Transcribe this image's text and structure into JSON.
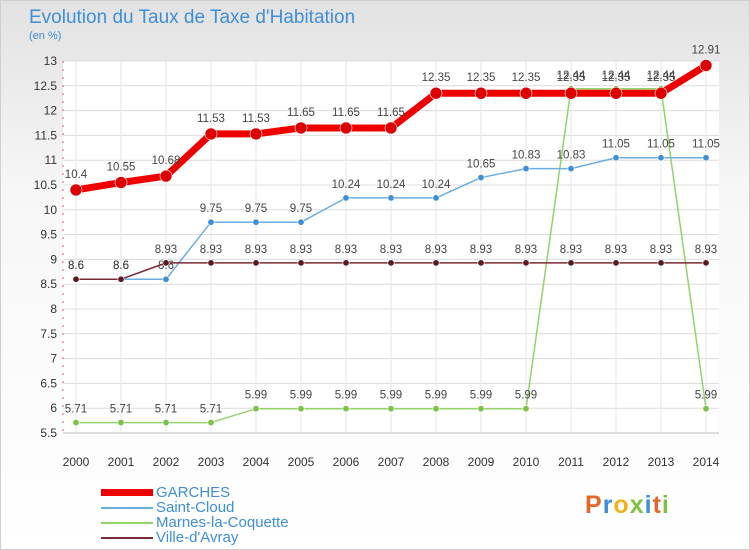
{
  "header": {
    "title": "Evolution du Taux de Taxe d'Habitation",
    "unit": "(en %)"
  },
  "logo": {
    "letters": [
      "P",
      "r",
      "o",
      "x",
      "i",
      "t",
      "i"
    ],
    "colors": [
      "#e8662a",
      "#3a8fd6",
      "#f2b21e",
      "#7fc242",
      "#3a8fd6",
      "#e8662a",
      "#7fc242"
    ]
  },
  "chart_data": {
    "type": "line",
    "title": "Evolution du Taux de Taxe d'Habitation",
    "ylabel": "(en %)",
    "xlabel": "",
    "x": [
      "2000",
      "2001",
      "2002",
      "2003",
      "2004",
      "2005",
      "2006",
      "2007",
      "2008",
      "2009",
      "2010",
      "2011",
      "2012",
      "2013",
      "2014"
    ],
    "ylim": [
      5.5,
      13
    ],
    "yticks": [
      5.5,
      6,
      6.5,
      7,
      7.5,
      8,
      8.5,
      9,
      9.5,
      10,
      10.5,
      11,
      11.5,
      12,
      12.5,
      13
    ],
    "ytick_labels": [
      "5.5",
      "6",
      "6.5",
      "7",
      "7.5",
      "8",
      "8.5",
      "9",
      "9.5",
      "10",
      "10.5",
      "11",
      "11.5",
      "12",
      "12.5",
      "13"
    ],
    "grid": true,
    "legend": "bottom-left",
    "series": [
      {
        "name": "Marnes-la-Coquette",
        "color": "#92d36a",
        "marker": "#7ac24a",
        "width": 1.5,
        "radius": 3.2,
        "values": [
          5.71,
          5.71,
          5.71,
          5.71,
          5.99,
          5.99,
          5.99,
          5.99,
          5.99,
          5.99,
          5.99,
          12.44,
          12.44,
          12.44,
          5.99
        ],
        "labels": [
          "5.71",
          "5.71",
          "5.71",
          "5.71",
          "5.99",
          "5.99",
          "5.99",
          "5.99",
          "5.99",
          "5.99",
          "5.99",
          "12.44",
          "12.44",
          "12.44",
          "5.99"
        ]
      },
      {
        "name": "Saint-Cloud",
        "color": "#6aaee0",
        "marker": "#3e8ed8",
        "width": 1.5,
        "radius": 3.2,
        "values": [
          8.6,
          8.6,
          8.6,
          9.75,
          9.75,
          9.75,
          10.24,
          10.24,
          10.24,
          10.65,
          10.83,
          10.83,
          11.05,
          11.05,
          11.05
        ],
        "labels": [
          "8.6",
          "8.6",
          "8.6",
          "9.75",
          "9.75",
          "9.75",
          "10.24",
          "10.24",
          "10.24",
          "10.65",
          "10.83",
          "10.83",
          "11.05",
          "11.05",
          "11.05"
        ]
      },
      {
        "name": "Ville-d'Avray",
        "color": "#7a2a35",
        "marker": "#5a1a22",
        "width": 1.5,
        "radius": 3.2,
        "values": [
          8.6,
          8.6,
          8.93,
          8.93,
          8.93,
          8.93,
          8.93,
          8.93,
          8.93,
          8.93,
          8.93,
          8.93,
          8.93,
          8.93,
          8.93
        ],
        "labels": [
          "8.6",
          "8.6",
          "8.93",
          "8.93",
          "8.93",
          "8.93",
          "8.93",
          "8.93",
          "8.93",
          "8.93",
          "8.93",
          "8.93",
          "8.93",
          "8.93",
          "8.93"
        ]
      },
      {
        "name": "GARCHES",
        "color": "#ee0000",
        "marker": "#dd0000",
        "width": 7,
        "radius": 6,
        "values": [
          10.4,
          10.55,
          10.68,
          11.53,
          11.53,
          11.65,
          11.65,
          11.65,
          12.35,
          12.35,
          12.35,
          12.35,
          12.35,
          12.35,
          12.91
        ],
        "labels": [
          "10.4",
          "10.55",
          "10.68",
          "11.53",
          "11.53",
          "11.65",
          "11.65",
          "11.65",
          "12.35",
          "12.35",
          "12.35",
          "12.35",
          "12.35",
          "12.35",
          "12.91"
        ]
      }
    ]
  }
}
